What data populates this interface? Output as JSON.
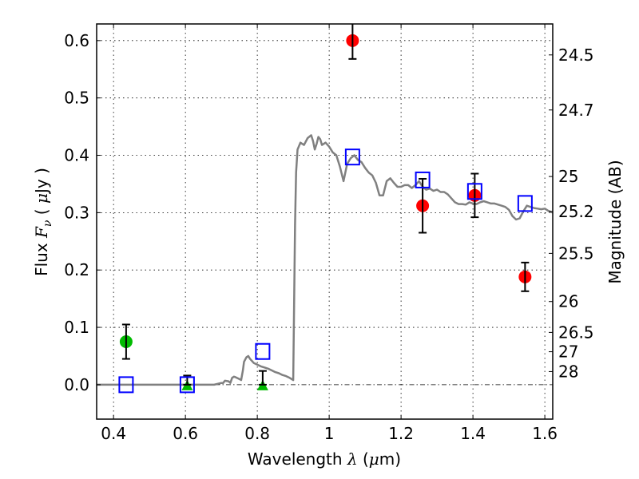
{
  "chart_data": {
    "type": "scatter",
    "title": "",
    "xlabel": "Wavelength  λ (μm)",
    "xlabel_parts": {
      "prefix": "Wavelength  ",
      "symbol": "λ",
      "open": " (",
      "mu": "μ",
      "unit": "m)"
    },
    "ylabel": "Flux  Fν  ( μJy )",
    "ylabel_parts": {
      "prefix": "Flux  ",
      "symbol": "F",
      "sub": "ν",
      "open": "  ( ",
      "mu": "μ",
      "unit": "Jy )"
    },
    "y2label": "Magnitude (AB)",
    "xlim": [
      0.353,
      1.622
    ],
    "ylim": [
      -0.06,
      0.629
    ],
    "grid": true,
    "xticks": [
      0.4,
      0.6,
      0.8,
      1.0,
      1.2,
      1.4,
      1.6
    ],
    "xtick_labels": [
      "0.4",
      "0.6",
      "0.8",
      "1",
      "1.2",
      "1.4",
      "1.6"
    ],
    "yticks": [
      0.0,
      0.1,
      0.2,
      0.3,
      0.4,
      0.5,
      0.6
    ],
    "ytick_labels": [
      "0.0",
      "0.1",
      "0.2",
      "0.3",
      "0.4",
      "0.5",
      "0.6"
    ],
    "y2_ticks": [
      {
        "label": "24.5",
        "flux": 0.575
      },
      {
        "label": "24.7",
        "flux": 0.479
      },
      {
        "label": "25",
        "flux": 0.363
      },
      {
        "label": "25.2",
        "flux": 0.302
      },
      {
        "label": "25.5",
        "flux": 0.229
      },
      {
        "label": "26",
        "flux": 0.145
      },
      {
        "label": "26.5",
        "flux": 0.0912
      },
      {
        "label": "27",
        "flux": 0.0575
      },
      {
        "label": "28",
        "flux": 0.0229
      }
    ],
    "zero_line": 0.0,
    "colors": {
      "spectrum": "#808080",
      "detections": "#ff0000",
      "optical": "#00bb00",
      "model": "#0000ff",
      "errorbar": "#000000"
    },
    "series": [
      {
        "name": "model spectrum",
        "kind": "line",
        "x": [
          0.353,
          0.6,
          0.65,
          0.68,
          0.7,
          0.705,
          0.71,
          0.72,
          0.725,
          0.73,
          0.735,
          0.74,
          0.75,
          0.755,
          0.76,
          0.763,
          0.77,
          0.775,
          0.78,
          0.79,
          0.8,
          0.81,
          0.82,
          0.83,
          0.84,
          0.85,
          0.86,
          0.87,
          0.88,
          0.89,
          0.9,
          0.905,
          0.908,
          0.912,
          0.92,
          0.93,
          0.94,
          0.95,
          0.955,
          0.96,
          0.965,
          0.97,
          0.975,
          0.98,
          0.99,
          1.0,
          1.01,
          1.02,
          1.03,
          1.04,
          1.05,
          1.06,
          1.07,
          1.08,
          1.09,
          1.1,
          1.11,
          1.12,
          1.13,
          1.14,
          1.15,
          1.16,
          1.17,
          1.18,
          1.19,
          1.2,
          1.21,
          1.22,
          1.23,
          1.24,
          1.25,
          1.26,
          1.27,
          1.28,
          1.29,
          1.3,
          1.31,
          1.32,
          1.33,
          1.34,
          1.35,
          1.36,
          1.37,
          1.38,
          1.39,
          1.4,
          1.41,
          1.42,
          1.43,
          1.44,
          1.45,
          1.46,
          1.47,
          1.48,
          1.49,
          1.5,
          1.51,
          1.52,
          1.53,
          1.54,
          1.55,
          1.56,
          1.57,
          1.58,
          1.59,
          1.6,
          1.61,
          1.622
        ],
        "y": [
          0.0,
          0.0,
          0.0,
          0.0,
          0.003,
          0.003,
          0.007,
          0.006,
          0.003,
          0.012,
          0.014,
          0.013,
          0.01,
          0.008,
          0.025,
          0.04,
          0.048,
          0.05,
          0.045,
          0.038,
          0.035,
          0.032,
          0.03,
          0.028,
          0.025,
          0.022,
          0.02,
          0.017,
          0.015,
          0.012,
          0.008,
          0.28,
          0.37,
          0.41,
          0.422,
          0.418,
          0.43,
          0.435,
          0.425,
          0.41,
          0.42,
          0.432,
          0.428,
          0.418,
          0.422,
          0.415,
          0.405,
          0.4,
          0.38,
          0.355,
          0.385,
          0.395,
          0.4,
          0.392,
          0.388,
          0.378,
          0.37,
          0.365,
          0.352,
          0.33,
          0.33,
          0.355,
          0.36,
          0.352,
          0.345,
          0.345,
          0.348,
          0.348,
          0.343,
          0.348,
          0.355,
          0.345,
          0.34,
          0.342,
          0.338,
          0.34,
          0.336,
          0.336,
          0.332,
          0.325,
          0.318,
          0.315,
          0.315,
          0.314,
          0.318,
          0.316,
          0.315,
          0.318,
          0.32,
          0.318,
          0.316,
          0.316,
          0.314,
          0.312,
          0.31,
          0.305,
          0.294,
          0.288,
          0.29,
          0.302,
          0.312,
          0.31,
          0.308,
          0.307,
          0.306,
          0.307,
          0.303,
          0.3
        ]
      },
      {
        "name": "observed (red)",
        "kind": "errorbar",
        "marker": "circle",
        "points": [
          {
            "x": 1.065,
            "y": 0.6,
            "yerr_low": 0.032,
            "yerr_high": 0.032
          },
          {
            "x": 1.26,
            "y": 0.312,
            "yerr_low": 0.047,
            "yerr_high": 0.047
          },
          {
            "x": 1.405,
            "y": 0.33,
            "yerr_low": 0.038,
            "yerr_high": 0.038
          },
          {
            "x": 1.545,
            "y": 0.188,
            "yerr_low": 0.025,
            "yerr_high": 0.025
          }
        ]
      },
      {
        "name": "observed (green)",
        "kind": "errorbar",
        "marker": "circle",
        "points": [
          {
            "x": 0.435,
            "y": 0.075,
            "yerr_low": 0.03,
            "yerr_high": 0.03
          }
        ]
      },
      {
        "name": "upper limits (green)",
        "kind": "errorbar",
        "marker": "triangle",
        "points": [
          {
            "x": 0.605,
            "y": 0.0,
            "yerr_low": 0.0,
            "yerr_high": 0.016
          },
          {
            "x": 0.815,
            "y": 0.0,
            "yerr_low": 0.0,
            "yerr_high": 0.024
          }
        ]
      },
      {
        "name": "model photometry",
        "kind": "scatter",
        "marker": "open-square",
        "points": [
          {
            "x": 0.435,
            "y": 0.0
          },
          {
            "x": 0.605,
            "y": 0.0
          },
          {
            "x": 0.815,
            "y": 0.058
          },
          {
            "x": 1.065,
            "y": 0.397
          },
          {
            "x": 1.26,
            "y": 0.357
          },
          {
            "x": 1.405,
            "y": 0.337
          },
          {
            "x": 1.545,
            "y": 0.316
          }
        ]
      }
    ]
  }
}
